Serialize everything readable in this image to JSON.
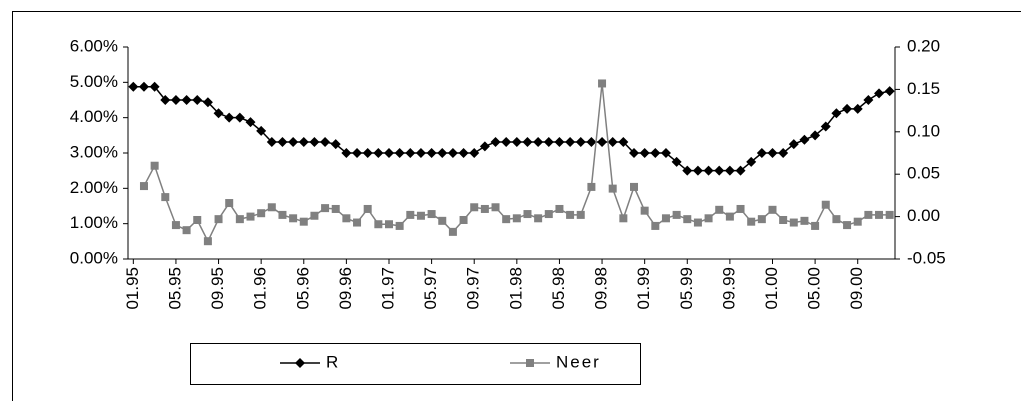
{
  "chart_data": {
    "type": "line",
    "categories": [
      "01.95",
      null,
      null,
      null,
      "05.95",
      null,
      null,
      null,
      "09.95",
      null,
      null,
      null,
      "01.96",
      null,
      null,
      null,
      "05.96",
      null,
      null,
      null,
      "09.96",
      null,
      null,
      null,
      "01.97",
      null,
      null,
      null,
      "05.97",
      null,
      null,
      null,
      "09.97",
      null,
      null,
      null,
      "01.98",
      null,
      null,
      null,
      "05.98",
      null,
      null,
      null,
      "09.98",
      null,
      null,
      null,
      "01.99",
      null,
      null,
      null,
      "05.99",
      null,
      null,
      null,
      "09.99",
      null,
      null,
      null,
      "01.00",
      null,
      null,
      null,
      "05.00",
      null,
      null,
      null,
      "09.00",
      null,
      null,
      null
    ],
    "series": [
      {
        "name": "R",
        "color": "#000000",
        "values": [
          4.875,
          4.875,
          4.875,
          4.5,
          4.5,
          4.5,
          4.5,
          4.4375,
          4.125,
          4.0,
          4.0,
          3.875,
          3.625,
          3.3125,
          3.3125,
          3.3125,
          3.3125,
          3.3125,
          3.3125,
          3.25,
          3.0,
          3.0,
          3.0,
          3.0,
          3.0,
          3.0,
          3.0,
          3.0,
          3.0,
          3.0,
          3.0,
          3.0,
          3.0,
          3.1875,
          3.3125,
          3.3125,
          3.3125,
          3.3125,
          3.3125,
          3.3125,
          3.3125,
          3.3125,
          3.3125,
          3.3125,
          3.3125,
          3.3125,
          3.3125,
          3.0,
          3.0,
          3.0,
          3.0,
          2.75,
          2.5,
          2.5,
          2.5,
          2.5,
          2.5,
          2.5,
          2.75,
          3.0,
          3.0,
          3.0,
          3.25,
          3.375,
          3.5,
          3.75,
          4.125,
          4.25,
          4.25,
          4.5,
          4.6875,
          4.75
        ]
      },
      {
        "name": "Neer",
        "color": "#808080",
        "axis": "y2",
        "values": [
          null,
          0.036,
          0.06,
          0.023,
          -0.01,
          -0.016,
          -0.004,
          -0.029,
          -0.003,
          0.016,
          -0.003,
          0.0,
          0.004,
          0.011,
          0.002,
          -0.002,
          -0.006,
          0.001,
          0.01,
          0.009,
          -0.002,
          -0.007,
          0.009,
          -0.009,
          -0.009,
          -0.011,
          0.002,
          0.001,
          0.003,
          -0.005,
          -0.018,
          -0.004,
          0.011,
          0.009,
          0.011,
          -0.003,
          -0.002,
          0.003,
          -0.002,
          0.003,
          0.009,
          0.002,
          0.002,
          0.035,
          0.157,
          0.033,
          -0.002,
          0.035,
          0.007,
          -0.011,
          -0.002,
          0.002,
          -0.003,
          -0.007,
          -0.002,
          0.008,
          0.0,
          0.009,
          -0.006,
          -0.003,
          0.008,
          -0.004,
          -0.007,
          -0.005,
          -0.011,
          0.014,
          -0.003,
          -0.01,
          -0.006,
          0.002,
          0.002,
          0.002
        ]
      }
    ],
    "ylim": [
      0,
      6
    ],
    "yticks": [
      {
        "value": 0,
        "label": "0.00%"
      },
      {
        "value": 1,
        "label": "1.00%"
      },
      {
        "value": 2,
        "label": "2.00%"
      },
      {
        "value": 3,
        "label": "3.00%"
      },
      {
        "value": 4,
        "label": "4.00%"
      },
      {
        "value": 5,
        "label": "5.00%"
      },
      {
        "value": 6,
        "label": "6.00%"
      }
    ],
    "y2lim": [
      -0.05,
      0.2
    ],
    "y2ticks": [
      -0.05,
      {
        "value": 0,
        "label": "0.00"
      },
      0.05,
      {
        "value": 0.1,
        "label": "0.10"
      },
      0.15,
      {
        "value": 0.2,
        "label": "0.20"
      }
    ],
    "grid": false
  }
}
